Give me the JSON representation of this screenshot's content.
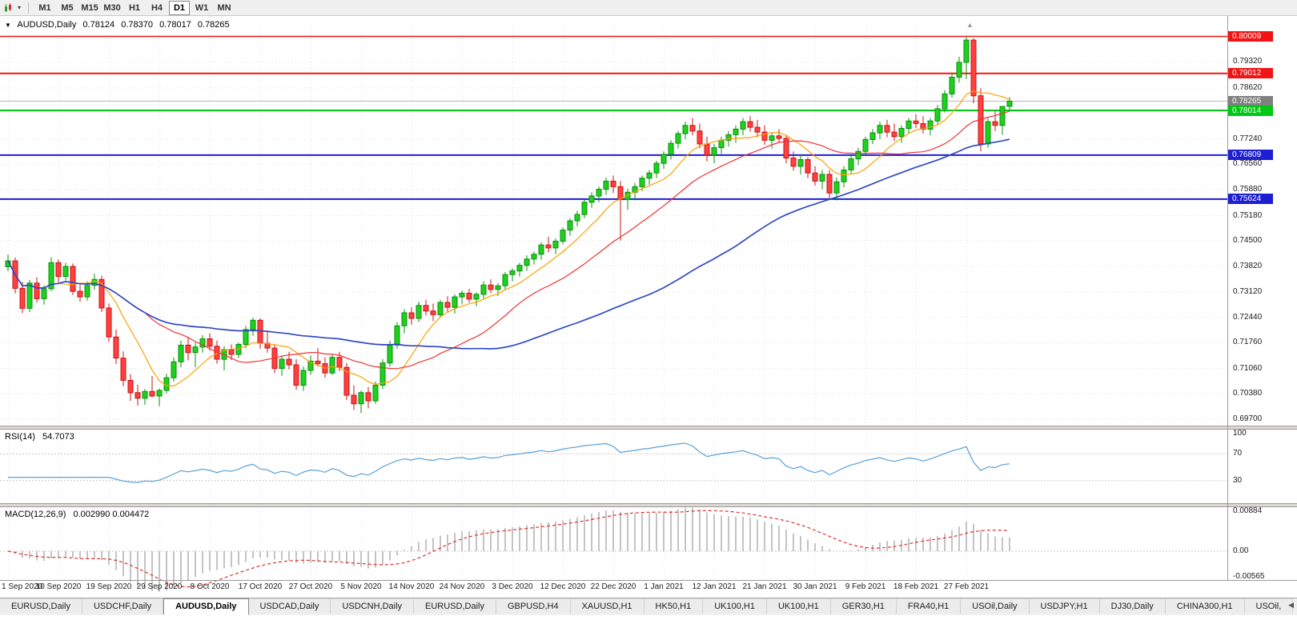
{
  "icons": {
    "dropdown_caret": "▾",
    "collapse_marker": "▼",
    "shift_marker": "▲",
    "scroll_left": "◀"
  },
  "toolbar": {
    "timeframes": [
      "M1",
      "M5",
      "M15",
      "M30",
      "H1",
      "H4",
      "D1",
      "W1",
      "MN"
    ],
    "active": "D1"
  },
  "chart_header": {
    "symbol_period": "AUDUSD,Daily",
    "open": "0.78124",
    "high": "0.78370",
    "low": "0.78017",
    "close": "0.78265"
  },
  "price_scale": {
    "ticks": [
      "0.79320",
      "0.78620",
      "0.77240",
      "0.76560",
      "0.75880",
      "0.75180",
      "0.74500",
      "0.73820",
      "0.73120",
      "0.72440",
      "0.71760",
      "0.71060",
      "0.70380",
      "0.69700"
    ],
    "markers": [
      {
        "label": "0.80009",
        "value": 0.80009,
        "color": "#f01414",
        "width": 1.4,
        "kind": "resistance-line"
      },
      {
        "label": "0.79012",
        "value": 0.79012,
        "color": "#f01414",
        "width": 2,
        "kind": "resistance-line"
      },
      {
        "label": "0.78265",
        "value": 0.78265,
        "color": "#808080",
        "width": 1,
        "kind": "bid-price"
      },
      {
        "label": "0.78014",
        "value": 0.78014,
        "color": "#00c814",
        "width": 2,
        "kind": "level-line"
      },
      {
        "label": "0.76809",
        "value": 0.76809,
        "color": "#1e1ed2",
        "width": 2,
        "kind": "support-line"
      },
      {
        "label": "0.75624",
        "value": 0.75624,
        "color": "#1e1ed2",
        "width": 2,
        "kind": "support-line"
      }
    ]
  },
  "time_scale": {
    "dates": [
      "1 Sep 2020",
      "10 Sep 2020",
      "19 Sep 2020",
      "29 Sep 2020",
      "8 Oct 2020",
      "17 Oct 2020",
      "27 Oct 2020",
      "5 Nov 2020",
      "14 Nov 2020",
      "24 Nov 2020",
      "3 Dec 2020",
      "12 Dec 2020",
      "22 Dec 2020",
      "1 Jan 2021",
      "12 Jan 2021",
      "21 Jan 2021",
      "30 Jan 2021",
      "9 Feb 2021",
      "18 Feb 2021",
      "27 Feb 2021"
    ]
  },
  "chart_data": {
    "type": "candlestick",
    "symbol": "AUDUSD",
    "timeframe": "Daily",
    "y_range": {
      "min": 0.695,
      "max": 0.803
    },
    "moving_averages": [
      {
        "name": "ma-fast",
        "period": 8,
        "color": "#ffa000"
      },
      {
        "name": "ma-medium",
        "period": 20,
        "color": "#f03030"
      },
      {
        "name": "ma-slow",
        "period": 55,
        "color": "#2f49c3"
      }
    ],
    "ohlc": [
      [
        0.738,
        0.7413,
        0.7368,
        0.7396
      ],
      [
        0.7396,
        0.7405,
        0.7308,
        0.7322
      ],
      [
        0.7322,
        0.734,
        0.7255,
        0.7268
      ],
      [
        0.7268,
        0.7345,
        0.7258,
        0.7336
      ],
      [
        0.7336,
        0.7352,
        0.7284,
        0.7294
      ],
      [
        0.7294,
        0.733,
        0.7278,
        0.7321
      ],
      [
        0.7321,
        0.7406,
        0.7315,
        0.7391
      ],
      [
        0.7391,
        0.74,
        0.7338,
        0.7354
      ],
      [
        0.7354,
        0.7391,
        0.7344,
        0.7381
      ],
      [
        0.7381,
        0.7389,
        0.7304,
        0.7314
      ],
      [
        0.7314,
        0.7331,
        0.7286,
        0.7299
      ],
      [
        0.7299,
        0.7341,
        0.7289,
        0.733
      ],
      [
        0.733,
        0.7361,
        0.7318,
        0.7346
      ],
      [
        0.7346,
        0.7356,
        0.7258,
        0.7269
      ],
      [
        0.7269,
        0.7281,
        0.7178,
        0.7191
      ],
      [
        0.7191,
        0.7211,
        0.7118,
        0.7134
      ],
      [
        0.7134,
        0.7152,
        0.7058,
        0.7074
      ],
      [
        0.7074,
        0.7091,
        0.7019,
        0.7041
      ],
      [
        0.7041,
        0.7062,
        0.7006,
        0.7026
      ],
      [
        0.7026,
        0.7051,
        0.7008,
        0.7044
      ],
      [
        0.7044,
        0.7086,
        0.7028,
        0.7032
      ],
      [
        0.7032,
        0.7052,
        0.7004,
        0.7047
      ],
      [
        0.7047,
        0.7092,
        0.7039,
        0.7081
      ],
      [
        0.7081,
        0.7136,
        0.7071,
        0.7124
      ],
      [
        0.7124,
        0.7181,
        0.7109,
        0.7169
      ],
      [
        0.7169,
        0.7191,
        0.7128,
        0.7149
      ],
      [
        0.7149,
        0.7176,
        0.7109,
        0.7164
      ],
      [
        0.7164,
        0.7196,
        0.7149,
        0.7186
      ],
      [
        0.7186,
        0.7201,
        0.7154,
        0.7166
      ],
      [
        0.7166,
        0.7181,
        0.7119,
        0.7131
      ],
      [
        0.7131,
        0.7166,
        0.7101,
        0.7157
      ],
      [
        0.7157,
        0.7171,
        0.7129,
        0.7144
      ],
      [
        0.7144,
        0.7176,
        0.7134,
        0.7171
      ],
      [
        0.7171,
        0.7221,
        0.7161,
        0.7211
      ],
      [
        0.7211,
        0.7243,
        0.7194,
        0.7236
      ],
      [
        0.7236,
        0.7241,
        0.7159,
        0.7174
      ],
      [
        0.7174,
        0.7206,
        0.7149,
        0.7161
      ],
      [
        0.7161,
        0.7171,
        0.7094,
        0.7106
      ],
      [
        0.7106,
        0.7141,
        0.7086,
        0.7131
      ],
      [
        0.7131,
        0.7151,
        0.7104,
        0.7116
      ],
      [
        0.7116,
        0.7131,
        0.7049,
        0.7061
      ],
      [
        0.7061,
        0.7111,
        0.7046,
        0.7101
      ],
      [
        0.7101,
        0.7141,
        0.7089,
        0.7126
      ],
      [
        0.7126,
        0.7161,
        0.7111,
        0.7119
      ],
      [
        0.7119,
        0.7136,
        0.7081,
        0.7094
      ],
      [
        0.7094,
        0.7146,
        0.7089,
        0.7136
      ],
      [
        0.7136,
        0.7151,
        0.7099,
        0.7109
      ],
      [
        0.7109,
        0.7121,
        0.7021,
        0.7034
      ],
      [
        0.7034,
        0.7061,
        0.6994,
        0.7011
      ],
      [
        0.7011,
        0.7046,
        0.6986,
        0.7041
      ],
      [
        0.7041,
        0.7056,
        0.6999,
        0.7019
      ],
      [
        0.7019,
        0.7071,
        0.7011,
        0.7061
      ],
      [
        0.7061,
        0.7131,
        0.7051,
        0.7121
      ],
      [
        0.7121,
        0.7181,
        0.7111,
        0.7169
      ],
      [
        0.7169,
        0.7231,
        0.7159,
        0.7221
      ],
      [
        0.7221,
        0.7266,
        0.7201,
        0.7256
      ],
      [
        0.7256,
        0.7271,
        0.7224,
        0.7241
      ],
      [
        0.7241,
        0.7286,
        0.7231,
        0.7276
      ],
      [
        0.7276,
        0.7291,
        0.7249,
        0.7261
      ],
      [
        0.7261,
        0.7281,
        0.7234,
        0.7251
      ],
      [
        0.7251,
        0.7291,
        0.7244,
        0.7284
      ],
      [
        0.7284,
        0.7301,
        0.7259,
        0.7271
      ],
      [
        0.7271,
        0.7306,
        0.7254,
        0.7299
      ],
      [
        0.7299,
        0.7316,
        0.7279,
        0.7309
      ],
      [
        0.7309,
        0.7321,
        0.7284,
        0.7293
      ],
      [
        0.7293,
        0.7311,
        0.7274,
        0.7306
      ],
      [
        0.7306,
        0.7341,
        0.7294,
        0.7331
      ],
      [
        0.7331,
        0.7346,
        0.7309,
        0.7319
      ],
      [
        0.7319,
        0.7336,
        0.7301,
        0.7329
      ],
      [
        0.7329,
        0.7366,
        0.7319,
        0.7359
      ],
      [
        0.7359,
        0.7376,
        0.7341,
        0.7369
      ],
      [
        0.7369,
        0.7391,
        0.7354,
        0.7384
      ],
      [
        0.7384,
        0.7411,
        0.7369,
        0.7401
      ],
      [
        0.7401,
        0.7421,
        0.7386,
        0.7414
      ],
      [
        0.7414,
        0.7446,
        0.7399,
        0.7439
      ],
      [
        0.7439,
        0.7461,
        0.7419,
        0.7431
      ],
      [
        0.7431,
        0.7456,
        0.7414,
        0.7449
      ],
      [
        0.7449,
        0.7486,
        0.7441,
        0.7479
      ],
      [
        0.7479,
        0.7511,
        0.7464,
        0.7504
      ],
      [
        0.7504,
        0.7531,
        0.7489,
        0.7521
      ],
      [
        0.7521,
        0.7561,
        0.7511,
        0.7554
      ],
      [
        0.7554,
        0.7581,
        0.7539,
        0.7571
      ],
      [
        0.7571,
        0.7596,
        0.7554,
        0.7589
      ],
      [
        0.7589,
        0.7621,
        0.7574,
        0.7611
      ],
      [
        0.7611,
        0.7626,
        0.7579,
        0.7596
      ],
      [
        0.7596,
        0.7611,
        0.7451,
        0.7561
      ],
      [
        0.7561,
        0.7591,
        0.7534,
        0.7581
      ],
      [
        0.7581,
        0.7606,
        0.7559,
        0.7596
      ],
      [
        0.7596,
        0.7626,
        0.7584,
        0.7619
      ],
      [
        0.7619,
        0.7641,
        0.7601,
        0.7633
      ],
      [
        0.7633,
        0.7666,
        0.7619,
        0.7659
      ],
      [
        0.7659,
        0.7691,
        0.7644,
        0.7683
      ],
      [
        0.7683,
        0.7721,
        0.7669,
        0.7713
      ],
      [
        0.7713,
        0.7746,
        0.7699,
        0.7739
      ],
      [
        0.7739,
        0.7771,
        0.7724,
        0.7761
      ],
      [
        0.7761,
        0.7781,
        0.7734,
        0.7746
      ],
      [
        0.7746,
        0.7766,
        0.7699,
        0.7711
      ],
      [
        0.7711,
        0.7731,
        0.7664,
        0.7681
      ],
      [
        0.7681,
        0.7711,
        0.7659,
        0.7701
      ],
      [
        0.7701,
        0.7731,
        0.7684,
        0.7721
      ],
      [
        0.7721,
        0.7746,
        0.7704,
        0.7736
      ],
      [
        0.7736,
        0.7761,
        0.7714,
        0.7751
      ],
      [
        0.7751,
        0.7781,
        0.7734,
        0.7771
      ],
      [
        0.7771,
        0.7786,
        0.7744,
        0.7756
      ],
      [
        0.7756,
        0.7776,
        0.7729,
        0.7743
      ],
      [
        0.7743,
        0.7761,
        0.7709,
        0.7721
      ],
      [
        0.7721,
        0.7741,
        0.7699,
        0.7733
      ],
      [
        0.7733,
        0.7751,
        0.7714,
        0.7726
      ],
      [
        0.7726,
        0.7736,
        0.7659,
        0.7673
      ],
      [
        0.7673,
        0.7691,
        0.7639,
        0.7651
      ],
      [
        0.7651,
        0.7681,
        0.7629,
        0.7669
      ],
      [
        0.7669,
        0.7676,
        0.7619,
        0.7633
      ],
      [
        0.7633,
        0.7651,
        0.7599,
        0.7611
      ],
      [
        0.7611,
        0.7641,
        0.7589,
        0.7629
      ],
      [
        0.7629,
        0.7641,
        0.7564,
        0.7579
      ],
      [
        0.7579,
        0.7621,
        0.7559,
        0.7609
      ],
      [
        0.7609,
        0.7651,
        0.7594,
        0.7641
      ],
      [
        0.7641,
        0.7681,
        0.7631,
        0.7671
      ],
      [
        0.7671,
        0.7701,
        0.7654,
        0.7691
      ],
      [
        0.7691,
        0.7731,
        0.7681,
        0.7723
      ],
      [
        0.7723,
        0.7751,
        0.7711,
        0.7741
      ],
      [
        0.7741,
        0.7771,
        0.7724,
        0.7761
      ],
      [
        0.7761,
        0.7776,
        0.7729,
        0.7743
      ],
      [
        0.7743,
        0.7766,
        0.7719,
        0.7731
      ],
      [
        0.7731,
        0.7761,
        0.7714,
        0.7753
      ],
      [
        0.7753,
        0.7781,
        0.7739,
        0.7773
      ],
      [
        0.7773,
        0.7791,
        0.7754,
        0.7766
      ],
      [
        0.7766,
        0.7786,
        0.7739,
        0.7751
      ],
      [
        0.7751,
        0.7781,
        0.7734,
        0.7773
      ],
      [
        0.7773,
        0.7816,
        0.7764,
        0.7806
      ],
      [
        0.7806,
        0.7856,
        0.7796,
        0.7846
      ],
      [
        0.7846,
        0.7901,
        0.7836,
        0.7891
      ],
      [
        0.7891,
        0.7946,
        0.7876,
        0.7931
      ],
      [
        0.7931,
        0.8001,
        0.7886,
        0.7991
      ],
      [
        0.7991,
        0.7996,
        0.7821,
        0.7841
      ],
      [
        0.7841,
        0.7861,
        0.7691,
        0.7711
      ],
      [
        0.7711,
        0.7781,
        0.7701,
        0.7771
      ],
      [
        0.7771,
        0.7801,
        0.7746,
        0.7761
      ],
      [
        0.7761,
        0.7796,
        0.7736,
        0.7812
      ],
      [
        0.78124,
        0.7837,
        0.78017,
        0.78265
      ]
    ]
  },
  "rsi_panel": {
    "label": "RSI(14)",
    "value": "54.7073",
    "period": 14,
    "ticks": [
      "100",
      "70",
      "30"
    ],
    "guide_levels": [
      70,
      30
    ],
    "line_color": "#58a0d8"
  },
  "macd_panel": {
    "label": "MACD(12,26,9)",
    "values": "0.002990 0.004472",
    "fast": 12,
    "slow": 26,
    "signal": 9,
    "ticks": [
      "0.00884",
      "0.00",
      "-0.00565"
    ],
    "y_range": {
      "min": -0.00565,
      "max": 0.00884
    },
    "histogram_color": "#c4c4c4",
    "signal_color": "#e03030"
  },
  "tab_bar": {
    "labels": [
      "EURUSD,Daily",
      "USDCHF,Daily",
      "AUDUSD,Daily",
      "USDCAD,Daily",
      "USDCNH,Daily",
      "EURUSD,Daily",
      "GBPUSD,H4",
      "XAUUSD,H1",
      "HK50,H1",
      "UK100,H1",
      "UK100,H1",
      "GER30,H1",
      "FRA40,H1",
      "USOil,Daily",
      "USDJPY,H1",
      "DJ30,Daily",
      "CHINA300,H1",
      "USOil,"
    ],
    "active_index": 2
  },
  "colors": {
    "bull": "#1fd11f",
    "bull_border": "#089008",
    "bear": "#ff4040",
    "bear_border": "#c81414",
    "grid": "#dfdfdf",
    "background": "#ffffff",
    "toolbar_bg": "#f0f0f0"
  }
}
